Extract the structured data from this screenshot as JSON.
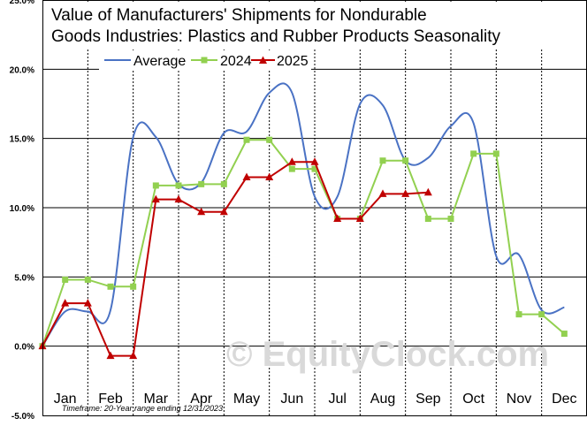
{
  "chart_data": {
    "type": "line",
    "title_lines": [
      "Value of Manufacturers'  Shipments  for Nondurable",
      "Goods Industries: Plastics and Rubber Products Seasonality"
    ],
    "categories": [
      "Jan",
      "Feb",
      "Mar",
      "Apr",
      "May",
      "Jun",
      "Jul",
      "Aug",
      "Sep",
      "Oct",
      "Nov",
      "Dec"
    ],
    "y_ticks": [
      "25.0%",
      "20.0%",
      "15.0%",
      "10.0%",
      "5.0%",
      "0.0%",
      "-5.0%"
    ],
    "ylim": [
      -5,
      25
    ],
    "grid": true,
    "legend_position": "top",
    "footnote": "Timeframe: 20-Year range ending 12/31/2023",
    "watermark": "© EquityClock.com",
    "colors": {
      "average": "#4a72c4",
      "y2024": "#92d050",
      "y2025": "#c00000"
    },
    "series": [
      {
        "name": "Average",
        "style": "smooth-line",
        "x": [
          0,
          0.5,
          1,
          1.5,
          2,
          2.5,
          3,
          3.5,
          4,
          4.5,
          5,
          5.5,
          6,
          6.5,
          7,
          7.5,
          8,
          8.5,
          9,
          9.5,
          10,
          10.5,
          11,
          11.5
        ],
        "values": [
          0.0,
          2.5,
          2.5,
          2.6,
          15.1,
          15.1,
          11.7,
          11.8,
          15.4,
          15.5,
          18.3,
          18.3,
          10.8,
          10.8,
          17.5,
          17.4,
          13.4,
          13.6,
          15.9,
          16.1,
          6.5,
          6.6,
          2.6,
          2.8
        ]
      },
      {
        "name": "2024",
        "style": "line-square",
        "x": [
          0,
          0.5,
          1,
          1.5,
          2,
          2.5,
          3,
          3.5,
          4,
          4.5,
          5,
          5.5,
          6,
          6.5,
          7,
          7.5,
          8,
          8.5,
          9,
          9.5,
          10,
          10.5,
          11,
          11.5
        ],
        "values": [
          0.0,
          4.8,
          4.8,
          4.3,
          4.3,
          11.6,
          11.6,
          11.7,
          11.7,
          14.9,
          14.9,
          12.8,
          12.8,
          9.2,
          9.2,
          13.4,
          13.4,
          9.2,
          9.2,
          13.9,
          13.9,
          2.3,
          2.3,
          0.9
        ]
      },
      {
        "name": "2025",
        "style": "line-triangle",
        "x": [
          0,
          0.5,
          1,
          1.5,
          2,
          2.5,
          3,
          3.5,
          4,
          4.5,
          5,
          5.5,
          6,
          6.5,
          7,
          7.5,
          8,
          8.5
        ],
        "values": [
          0.0,
          3.1,
          3.1,
          -0.7,
          -0.7,
          10.6,
          10.6,
          9.7,
          9.7,
          12.2,
          12.2,
          13.3,
          13.3,
          9.2,
          9.2,
          11.0,
          11.0,
          11.1
        ]
      }
    ]
  }
}
